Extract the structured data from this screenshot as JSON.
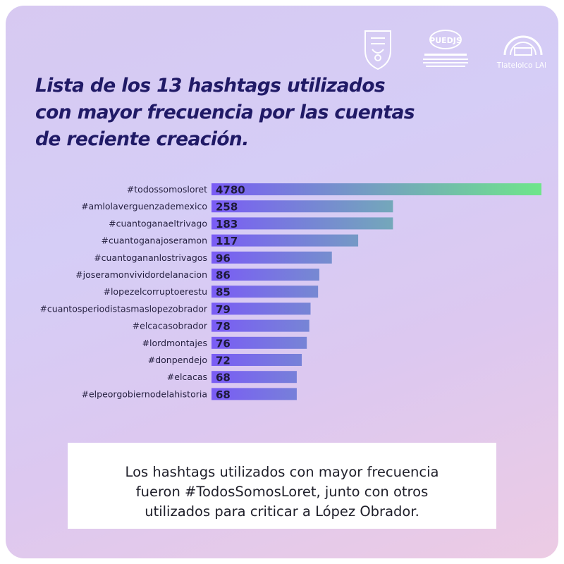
{
  "logos": {
    "logo1_icon": "university-crest-icon",
    "logo2_text": "PUEDJS",
    "logo2_icon": "puedjs-logo-icon",
    "logo3_text": "Tlatelolco LAB",
    "logo3_icon": "tlatelolco-lab-logo-icon"
  },
  "title_lines": [
    "Lista de los 13 hashtags utilizados",
    "con mayor frecuencia por las cuentas",
    "de reciente creación."
  ],
  "chart_data": {
    "type": "bar",
    "orientation": "horizontal",
    "categories": [
      "#todossomosloret",
      "#amlolaverguenzademexico",
      "#cuantoganaeltrivago",
      "#cuantoganajoseramon",
      "#cuantogananlostrivagos",
      "#joseramonvividordelanacion",
      "#lopezelcorruptoerestu",
      "#cuantosperiodistasmaslopezobrador",
      "#elcacasobrador",
      "#lordmontajes",
      "#donpendejo",
      "#elcacas",
      "#elpeorgobiernodelahistoria"
    ],
    "values": [
      4780,
      258,
      183,
      117,
      96,
      86,
      85,
      79,
      78,
      76,
      72,
      68,
      68
    ],
    "value_labels": true,
    "axis_visible": false,
    "grid": false,
    "colors": {
      "low": "#7a5cf5",
      "high": "#6ee68a"
    }
  },
  "caption_lines": [
    "Los hashtags utilizados con mayor frecuencia",
    "fueron #TodosSomosLoret, junto con otros",
    "utilizados para criticar a López Obrador."
  ]
}
